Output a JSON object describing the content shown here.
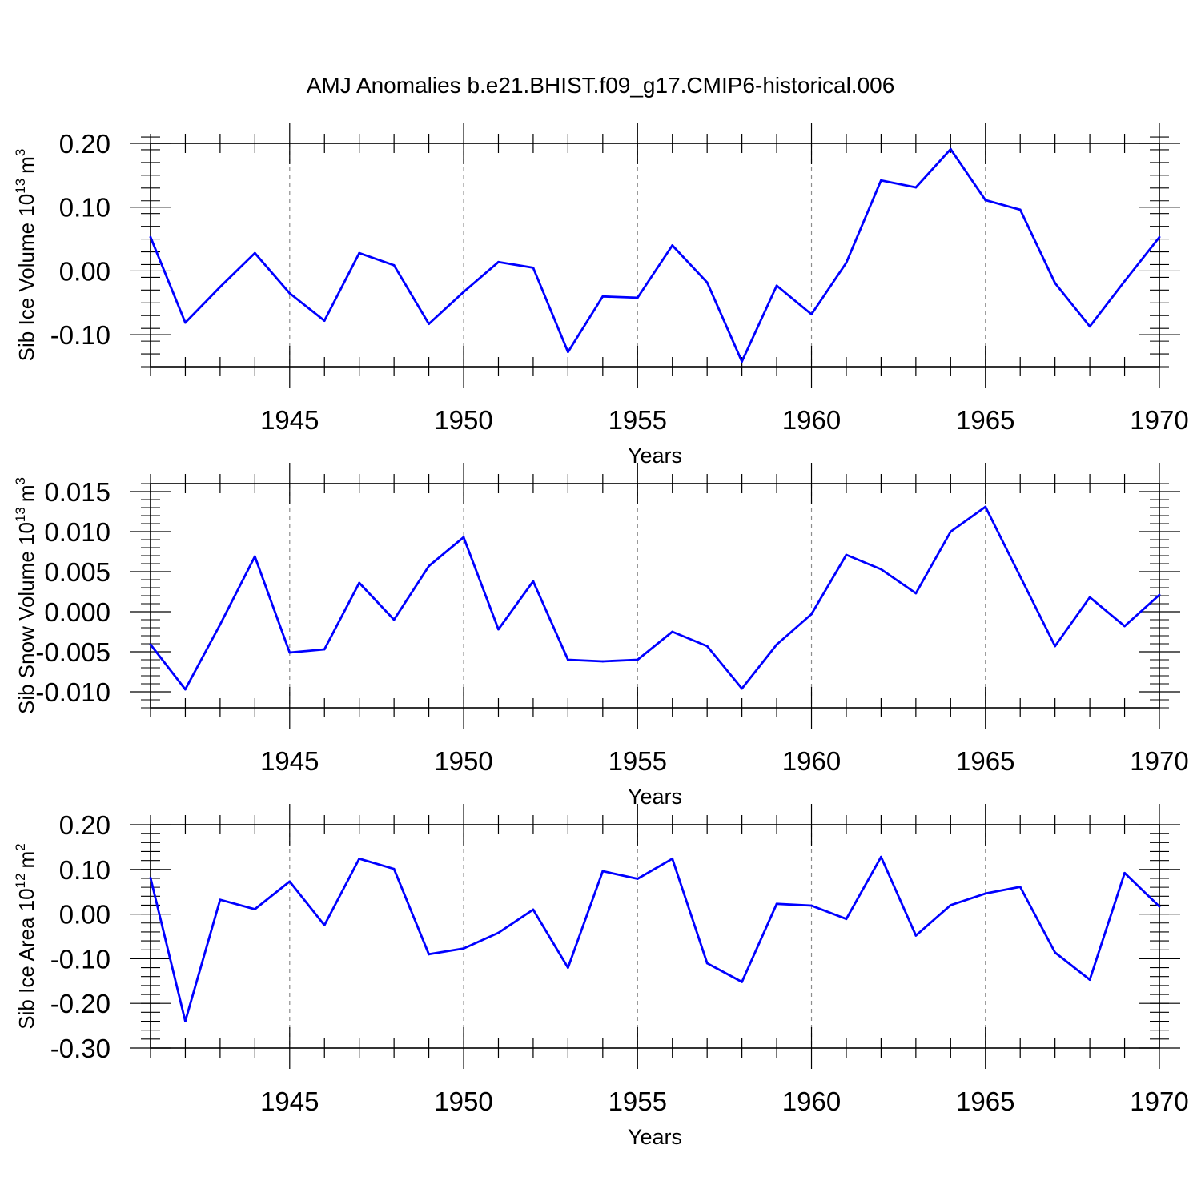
{
  "figure": {
    "title": "AMJ Anomalies b.e21.BHIST.f09_g17.CMIP6-historical.006",
    "line_color": "#0000ff",
    "grid_color": "#8c8c8c"
  },
  "chart_data": [
    {
      "type": "line",
      "title": "AMJ Anomalies b.e21.BHIST.f09_g17.CMIP6-historical.006",
      "xlabel": "Years",
      "ylabel": "Sib Ice Volume 10",
      "ylabel_exp": "13",
      "ylabel_unit": "m",
      "ylabel_unit_exp": "3",
      "xlim": [
        1941,
        1970
      ],
      "ylim": [
        -0.15,
        0.2
      ],
      "x_ticks": [
        1945,
        1950,
        1955,
        1960,
        1965,
        1970
      ],
      "y_ticks": [
        0.2,
        0.1,
        0.0,
        -0.1
      ],
      "y_tick_labels": [
        "0.20",
        "0.10",
        "0.00",
        "-0.10"
      ],
      "grid": "vertical dashed at major x ticks",
      "x": [
        1941,
        1942,
        1943,
        1944,
        1945,
        1946,
        1947,
        1948,
        1949,
        1950,
        1951,
        1952,
        1953,
        1954,
        1955,
        1956,
        1957,
        1958,
        1959,
        1960,
        1961,
        1962,
        1963,
        1964,
        1965,
        1966,
        1967,
        1968,
        1969,
        1970
      ],
      "values": [
        0.053,
        -0.081,
        -0.025,
        0.028,
        -0.035,
        -0.078,
        0.028,
        0.009,
        -0.083,
        -0.033,
        0.014,
        0.005,
        -0.127,
        -0.04,
        -0.042,
        0.04,
        -0.018,
        -0.142,
        -0.023,
        -0.068,
        0.013,
        0.142,
        0.131,
        0.191,
        0.111,
        0.096,
        -0.019,
        -0.087,
        -0.016,
        0.053
      ]
    },
    {
      "type": "line",
      "xlabel": "Years",
      "ylabel": "Sib Snow Volume 10",
      "ylabel_exp": "13",
      "ylabel_unit": "m",
      "ylabel_unit_exp": "3",
      "xlim": [
        1941,
        1970
      ],
      "ylim": [
        -0.012,
        0.016
      ],
      "x_ticks": [
        1945,
        1950,
        1955,
        1960,
        1965,
        1970
      ],
      "y_ticks": [
        0.015,
        0.01,
        0.005,
        0.0,
        -0.005,
        -0.01
      ],
      "y_tick_labels": [
        "0.015",
        "0.010",
        "0.005",
        "0.000",
        "-0.005",
        "-0.010"
      ],
      "grid": "vertical dashed at major x ticks",
      "x": [
        1941,
        1942,
        1943,
        1944,
        1945,
        1946,
        1947,
        1948,
        1949,
        1950,
        1951,
        1952,
        1953,
        1954,
        1955,
        1956,
        1957,
        1958,
        1959,
        1960,
        1961,
        1962,
        1963,
        1964,
        1965,
        1966,
        1967,
        1968,
        1969,
        1970
      ],
      "values": [
        -0.0041,
        -0.0097,
        -0.0016,
        0.0069,
        -0.0051,
        -0.0047,
        0.0036,
        -0.001,
        0.0057,
        0.0093,
        -0.0022,
        0.0038,
        -0.006,
        -0.0062,
        -0.006,
        -0.0025,
        -0.0043,
        -0.0096,
        -0.0041,
        -0.0003,
        0.0071,
        0.0053,
        0.0023,
        0.01,
        0.0131,
        0.0044,
        -0.0043,
        0.0018,
        -0.0018,
        0.0021
      ]
    },
    {
      "type": "line",
      "xlabel": "Years",
      "ylabel": "Sib Ice Area 10",
      "ylabel_exp": "12",
      "ylabel_unit": "m",
      "ylabel_unit_exp": "2",
      "xlim": [
        1941,
        1970
      ],
      "ylim": [
        -0.3,
        0.2
      ],
      "x_ticks": [
        1945,
        1950,
        1955,
        1960,
        1965,
        1970
      ],
      "y_ticks": [
        0.2,
        0.1,
        0.0,
        -0.1,
        -0.2,
        -0.3
      ],
      "y_tick_labels": [
        "0.20",
        "0.10",
        "0.00",
        "-0.10",
        "-0.20",
        "-0.30"
      ],
      "grid": "vertical dashed at major x ticks",
      "x": [
        1941,
        1942,
        1943,
        1944,
        1945,
        1946,
        1947,
        1948,
        1949,
        1950,
        1951,
        1952,
        1953,
        1954,
        1955,
        1956,
        1957,
        1958,
        1959,
        1960,
        1961,
        1962,
        1963,
        1964,
        1965,
        1966,
        1967,
        1968,
        1969,
        1970
      ],
      "values": [
        0.081,
        -0.24,
        0.032,
        0.011,
        0.073,
        -0.025,
        0.124,
        0.101,
        -0.09,
        -0.077,
        -0.042,
        0.01,
        -0.12,
        0.096,
        0.079,
        0.124,
        -0.11,
        -0.152,
        0.023,
        0.019,
        -0.011,
        0.128,
        -0.048,
        0.02,
        0.046,
        0.061,
        -0.086,
        -0.147,
        0.092,
        0.017
      ]
    }
  ]
}
